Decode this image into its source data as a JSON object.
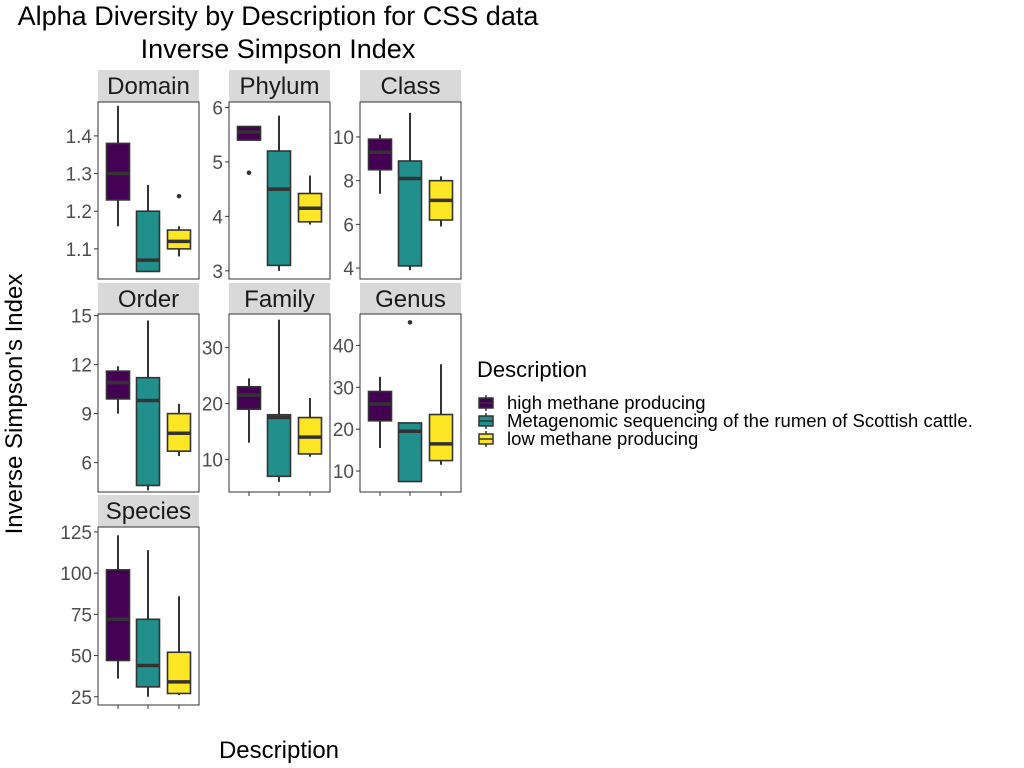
{
  "chart_data": {
    "type": "box",
    "title": "Alpha Diversity by Description for CSS data",
    "subtitle": "Inverse Simpson Index",
    "xlabel": "Description",
    "ylabel": "Inverse Simpson's Index",
    "legend": {
      "title": "Description",
      "placement": "right",
      "entries": [
        {
          "label": "high methane producing",
          "color": "#440154"
        },
        {
          "label": "Metagenomic sequencing of the rumen of Scottish cattle.",
          "color": "#21908C"
        },
        {
          "label": "low methane producing",
          "color": "#FDE725"
        }
      ]
    },
    "categories": [
      "high methane producing",
      "Metagenomic sequencing of the rumen of Scottish cattle.",
      "low methane producing"
    ],
    "panels": [
      {
        "name": "Domain",
        "ylim": [
          1.02,
          1.49
        ],
        "ticks": [
          1.1,
          1.2,
          1.3,
          1.4
        ],
        "tick_labels": [
          "1.1",
          "1.2",
          "1.3",
          "1.4"
        ],
        "boxes": [
          {
            "min": 1.16,
            "q1": 1.23,
            "median": 1.3,
            "q3": 1.38,
            "max": 1.48,
            "outliers": []
          },
          {
            "min": 1.04,
            "q1": 1.04,
            "median": 1.07,
            "q3": 1.2,
            "max": 1.27,
            "outliers": []
          },
          {
            "min": 1.08,
            "q1": 1.1,
            "median": 1.12,
            "q3": 1.15,
            "max": 1.16,
            "outliers": [
              1.24
            ]
          }
        ]
      },
      {
        "name": "Phylum",
        "ylim": [
          2.85,
          6.1
        ],
        "ticks": [
          3,
          4,
          5,
          6
        ],
        "tick_labels": [
          "3",
          "4",
          "5",
          "6"
        ],
        "boxes": [
          {
            "min": 5.4,
            "q1": 5.4,
            "median": 5.55,
            "q3": 5.65,
            "max": 5.65,
            "outliers": [
              4.8
            ]
          },
          {
            "min": 3.0,
            "q1": 3.1,
            "median": 4.5,
            "q3": 5.2,
            "max": 5.85,
            "outliers": []
          },
          {
            "min": 3.85,
            "q1": 3.9,
            "median": 4.15,
            "q3": 4.42,
            "max": 4.75,
            "outliers": []
          }
        ]
      },
      {
        "name": "Class",
        "ylim": [
          3.5,
          11.6
        ],
        "ticks": [
          4,
          6,
          8,
          10
        ],
        "tick_labels": [
          "4",
          "6",
          "8",
          "10"
        ],
        "boxes": [
          {
            "min": 7.4,
            "q1": 8.5,
            "median": 9.3,
            "q3": 9.9,
            "max": 10.1,
            "outliers": []
          },
          {
            "min": 3.9,
            "q1": 4.1,
            "median": 8.1,
            "q3": 8.9,
            "max": 11.1,
            "outliers": []
          },
          {
            "min": 5.9,
            "q1": 6.2,
            "median": 7.1,
            "q3": 8.0,
            "max": 8.2,
            "outliers": []
          }
        ]
      },
      {
        "name": "Order",
        "ylim": [
          4.2,
          15.1
        ],
        "ticks": [
          6,
          9,
          12,
          15
        ],
        "tick_labels": [
          "6",
          "9",
          "12",
          "15"
        ],
        "boxes": [
          {
            "min": 9.0,
            "q1": 9.9,
            "median": 10.9,
            "q3": 11.6,
            "max": 11.9,
            "outliers": []
          },
          {
            "min": 4.3,
            "q1": 4.6,
            "median": 9.8,
            "q3": 11.2,
            "max": 14.7,
            "outliers": []
          },
          {
            "min": 6.4,
            "q1": 6.7,
            "median": 7.8,
            "q3": 9.0,
            "max": 9.6,
            "outliers": []
          }
        ]
      },
      {
        "name": "Family",
        "ylim": [
          4.2,
          36
        ],
        "ticks": [
          10,
          20,
          30
        ],
        "tick_labels": [
          "10",
          "20",
          "30"
        ],
        "boxes": [
          {
            "min": 13.0,
            "q1": 19.0,
            "median": 21.5,
            "q3": 23.0,
            "max": 24.5,
            "outliers": []
          },
          {
            "min": 6.0,
            "q1": 7.0,
            "median": 17.5,
            "q3": 18.0,
            "max": 35.0,
            "outliers": []
          },
          {
            "min": 10.5,
            "q1": 11.0,
            "median": 14.0,
            "q3": 17.5,
            "max": 21.0,
            "outliers": []
          }
        ]
      },
      {
        "name": "Genus",
        "ylim": [
          5,
          47.5
        ],
        "ticks": [
          10,
          20,
          30,
          40
        ],
        "tick_labels": [
          "10",
          "20",
          "30",
          "40"
        ],
        "boxes": [
          {
            "min": 15.5,
            "q1": 22.0,
            "median": 26.0,
            "q3": 29.0,
            "max": 32.5,
            "outliers": []
          },
          {
            "min": 7.5,
            "q1": 7.5,
            "median": 19.5,
            "q3": 21.5,
            "max": 21.5,
            "outliers": [
              45.5
            ]
          },
          {
            "min": 11.5,
            "q1": 12.5,
            "median": 16.5,
            "q3": 23.5,
            "max": 35.5,
            "outliers": []
          }
        ]
      },
      {
        "name": "Species",
        "ylim": [
          20,
          128
        ],
        "ticks": [
          25,
          50,
          75,
          100,
          125
        ],
        "tick_labels": [
          "25",
          "50",
          "75",
          "100",
          "125"
        ],
        "boxes": [
          {
            "min": 36,
            "q1": 47,
            "median": 72,
            "q3": 102,
            "max": 123,
            "outliers": []
          },
          {
            "min": 25,
            "q1": 31,
            "median": 44,
            "q3": 72,
            "max": 114,
            "outliers": []
          },
          {
            "min": 26,
            "q1": 27,
            "median": 34,
            "q3": 52,
            "max": 86,
            "outliers": []
          }
        ]
      }
    ]
  }
}
